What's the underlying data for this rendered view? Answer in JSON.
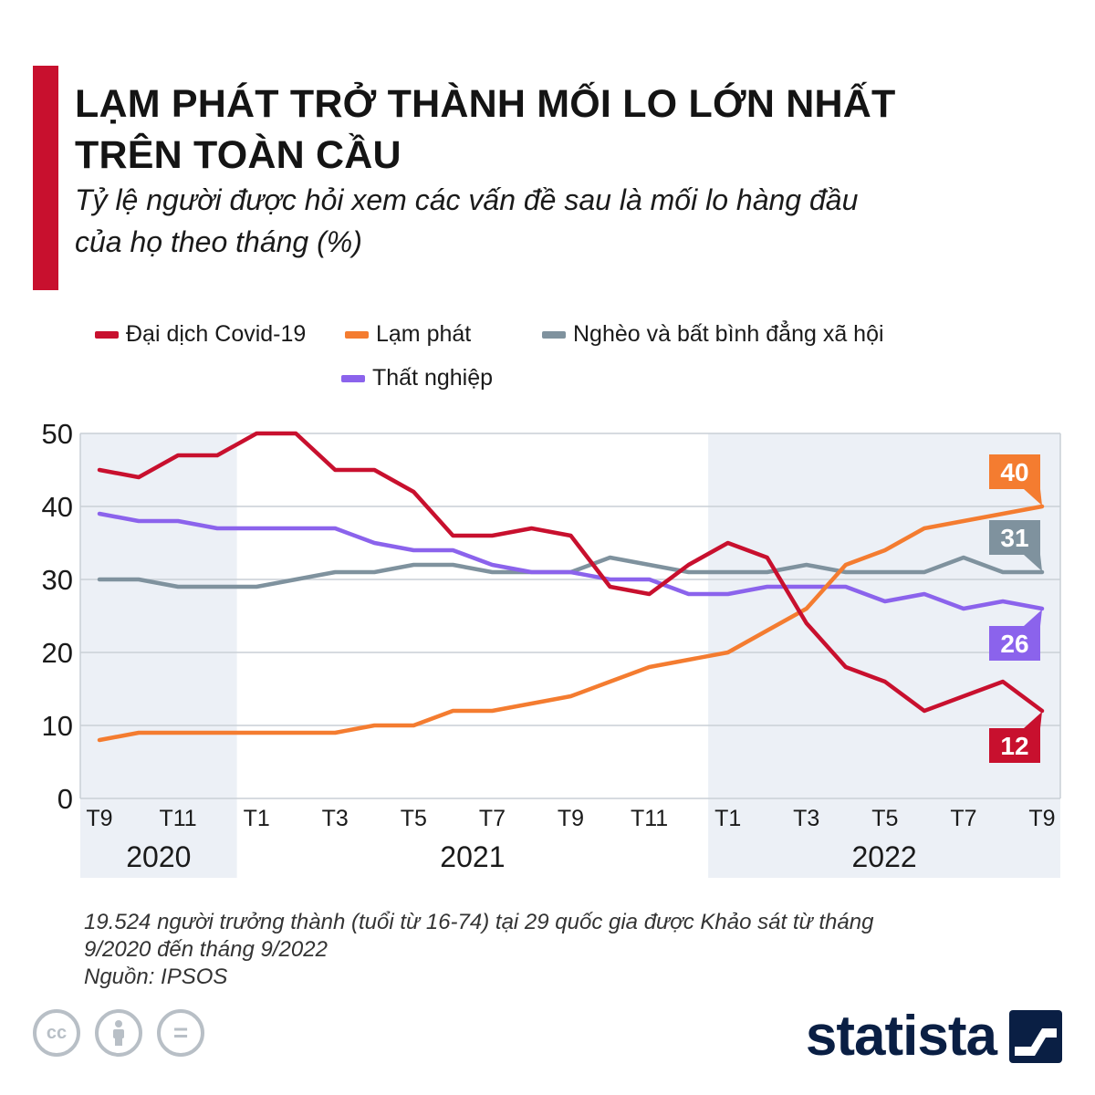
{
  "title_lines": [
    "LẠM PHÁT TRỞ THÀNH MỐI LO LỚN NHẤT",
    "TRÊN TOÀN CẦU"
  ],
  "subtitle_lines": [
    "Tỷ lệ người được hỏi xem các vấn đề sau là mối lo hàng đầu",
    "của họ theo tháng (%)"
  ],
  "colors": {
    "accent": "#c8102e",
    "covid": "#c8102e",
    "inflation": "#f47c30",
    "poverty": "#7f929e",
    "unemployment": "#8b63ec",
    "grid": "#c9cfd6",
    "axis_text": "#1a1a1a",
    "band": "#ecf0f6",
    "brand": "#0a1f44"
  },
  "footnote": {
    "lines": [
      "19.524 người trưởng thành (tuổi từ 16-74) tại 29 quốc gia được Khảo sát từ tháng",
      "9/2020 đến tháng 9/2022"
    ],
    "source": "Nguồn: IPSOS"
  },
  "credits": {
    "icons": [
      "cc-icon",
      "attribution-icon",
      "no-derivatives-icon"
    ],
    "cc_text": "cc",
    "nd_text": "="
  },
  "brand": {
    "name": "statista"
  },
  "chart_data": {
    "type": "line",
    "title": "LẠM PHÁT TRỞ THÀNH MỐI LO LỚN NHẤT TRÊN TOÀN CẦU",
    "ylim": [
      0,
      50
    ],
    "yticks": [
      0,
      10,
      20,
      30,
      40,
      50
    ],
    "grid": true,
    "legend_position": "top",
    "x": [
      "2020-09",
      "2020-10",
      "2020-11",
      "2020-12",
      "2021-01",
      "2021-02",
      "2021-03",
      "2021-04",
      "2021-05",
      "2021-06",
      "2021-07",
      "2021-08",
      "2021-09",
      "2021-10",
      "2021-11",
      "2021-12",
      "2022-01",
      "2022-02",
      "2022-03",
      "2022-04",
      "2022-05",
      "2022-06",
      "2022-07",
      "2022-08",
      "2022-09"
    ],
    "xtick_labels": [
      {
        "index": 0,
        "label": "T9"
      },
      {
        "index": 2,
        "label": "T11"
      },
      {
        "index": 4,
        "label": "T1"
      },
      {
        "index": 6,
        "label": "T3"
      },
      {
        "index": 8,
        "label": "T5"
      },
      {
        "index": 10,
        "label": "T7"
      },
      {
        "index": 12,
        "label": "T9"
      },
      {
        "index": 14,
        "label": "T11"
      },
      {
        "index": 16,
        "label": "T1"
      },
      {
        "index": 18,
        "label": "T3"
      },
      {
        "index": 20,
        "label": "T5"
      },
      {
        "index": 22,
        "label": "T7"
      },
      {
        "index": 24,
        "label": "T9"
      }
    ],
    "year_bands": [
      {
        "label": "2020",
        "start": 0,
        "end": 3,
        "shaded": true
      },
      {
        "label": "2021",
        "start": 4,
        "end": 15,
        "shaded": false
      },
      {
        "label": "2022",
        "start": 16,
        "end": 24,
        "shaded": true
      }
    ],
    "series": [
      {
        "key": "covid",
        "name": "Đại dịch Covid-19",
        "color": "#c8102e",
        "end_label": "12",
        "values": [
          45,
          44,
          47,
          47,
          50,
          50,
          45,
          45,
          42,
          36,
          36,
          37,
          36,
          29,
          28,
          32,
          35,
          33,
          24,
          18,
          16,
          12,
          14,
          16,
          12
        ]
      },
      {
        "key": "inflation",
        "name": "Lạm phát",
        "color": "#f47c30",
        "end_label": "40",
        "values": [
          8,
          9,
          9,
          9,
          9,
          9,
          9,
          10,
          10,
          12,
          12,
          13,
          14,
          16,
          18,
          19,
          20,
          23,
          26,
          32,
          34,
          37,
          38,
          39,
          40
        ]
      },
      {
        "key": "poverty",
        "name": "Nghèo và bất bình đẳng xã hội",
        "color": "#7f929e",
        "end_label": "31",
        "values": [
          30,
          30,
          29,
          29,
          29,
          30,
          31,
          31,
          32,
          32,
          31,
          31,
          31,
          33,
          32,
          31,
          31,
          31,
          32,
          31,
          31,
          31,
          33,
          31,
          31
        ]
      },
      {
        "key": "unemployment",
        "name": "Thất nghiệp",
        "color": "#8b63ec",
        "end_label": "26",
        "values": [
          39,
          38,
          38,
          37,
          37,
          37,
          37,
          35,
          34,
          34,
          32,
          31,
          31,
          30,
          30,
          28,
          28,
          29,
          29,
          29,
          27,
          28,
          26,
          27,
          26
        ]
      }
    ]
  }
}
